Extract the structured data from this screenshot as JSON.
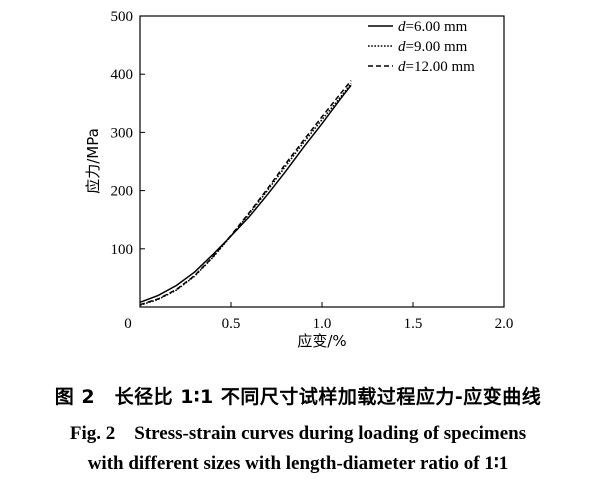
{
  "chart_data": {
    "type": "line",
    "xlabel": "应变/%",
    "ylabel": "应力/MPa",
    "xlim": [
      0,
      2.0
    ],
    "ylim": [
      0,
      500
    ],
    "x_ticks": [
      "0",
      "0.5",
      "1.0",
      "1.5",
      "2.0"
    ],
    "x_tick_values": [
      0,
      0.5,
      1.0,
      1.5,
      2.0
    ],
    "y_ticks": [
      "100",
      "200",
      "300",
      "400",
      "500"
    ],
    "y_tick_values": [
      100,
      200,
      300,
      400,
      500
    ],
    "legend_position": "top-right",
    "grid": false,
    "series": [
      {
        "name_prefix": "d",
        "name_value": "=6.00 mm",
        "line_style": "solid",
        "x": [
          0,
          0.1,
          0.2,
          0.3,
          0.4,
          0.5,
          0.6,
          0.7,
          0.8,
          0.9,
          1.0,
          1.1,
          1.16
        ],
        "y": [
          8,
          20,
          37,
          60,
          90,
          122,
          155,
          193,
          233,
          275,
          315,
          357,
          381
        ]
      },
      {
        "name_prefix": "d",
        "name_value": "=9.00 mm",
        "line_style": "dotted",
        "x": [
          0,
          0.1,
          0.2,
          0.3,
          0.4,
          0.5,
          0.6,
          0.7,
          0.8,
          0.9,
          1.0,
          1.1,
          1.16
        ],
        "y": [
          3,
          13,
          29,
          53,
          85,
          122,
          160,
          200,
          242,
          283,
          322,
          360,
          384
        ]
      },
      {
        "name_prefix": "d",
        "name_value": "=12.00 mm",
        "line_style": "dashed",
        "x": [
          0,
          0.1,
          0.2,
          0.3,
          0.4,
          0.5,
          0.6,
          0.7,
          0.8,
          0.9,
          1.0,
          1.1,
          1.16
        ],
        "y": [
          4,
          14,
          30,
          54,
          86,
          123,
          162,
          203,
          246,
          287,
          327,
          366,
          389
        ]
      }
    ]
  },
  "caption": {
    "cn": "图 2　长径比 1∶1 不同尺寸试样加载过程应力-应变曲线",
    "en_line1": "Fig. 2　Stress-strain curves during loading of specimens",
    "en_line2": "with different sizes with length-diameter ratio of 1∶1"
  }
}
